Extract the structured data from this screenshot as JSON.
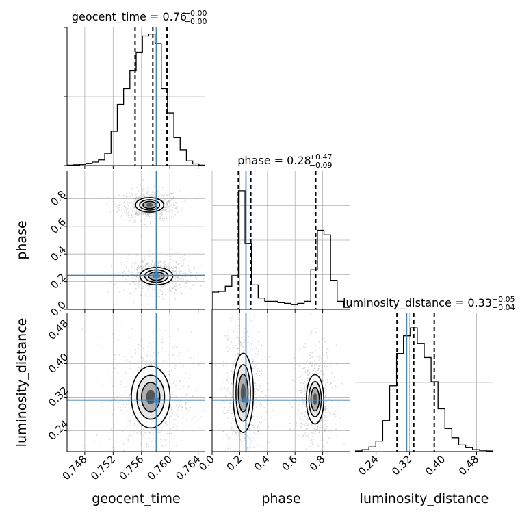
{
  "chart_data": {
    "type": "corner",
    "grid": true,
    "colors": {
      "truth": "#4682b4",
      "hist": "#000000",
      "quantile": "#000000",
      "grid": "#b0b0b0",
      "samples": "#9a9a9a"
    },
    "parameters": [
      {
        "name": "geocent_time",
        "axis_label": "geocent_time",
        "title_main": "geocent_time = 0.76",
        "title_sup": "+0.00",
        "title_sub": "−0.00",
        "range": [
          0.7455,
          0.765
        ],
        "ticks": [
          0.748,
          0.752,
          0.756,
          0.76,
          0.764
        ],
        "tick_labels": [
          "0.748",
          "0.752",
          "0.756",
          "0.760",
          "0.764"
        ],
        "truth": 0.7581,
        "quantiles": [
          0.7551,
          0.7576,
          0.7596
        ],
        "hist_counts": [
          0.3,
          0.6,
          0.9,
          1.7,
          2.6,
          4.3,
          9.3,
          26.0,
          46.5,
          58.5,
          72.0,
          86.0,
          98.5,
          100.0,
          92.5,
          58.5,
          40.0,
          21.5,
          12.0,
          3.5,
          1.3,
          0.3
        ],
        "hist_max": 100.0
      },
      {
        "name": "phase",
        "axis_label": "phase",
        "title_main": "phase = 0.28",
        "title_sup": "+0.47",
        "title_sub": "−0.09",
        "range": [
          0.0,
          1.0
        ],
        "ticks": [
          0.0,
          0.2,
          0.4,
          0.6,
          0.8
        ],
        "tick_labels": [
          "0.0",
          "0.2",
          "0.4",
          "0.6",
          "0.8"
        ],
        "truth": 0.245,
        "quantiles": [
          0.19,
          0.28,
          0.75
        ],
        "hist_counts": [
          13,
          13.5,
          17.5,
          25.5,
          90,
          50,
          18.5,
          8.5,
          6,
          6,
          5,
          4.5,
          3.5,
          4.5,
          6,
          30,
          60,
          56.5,
          22,
          6,
          1.5
        ],
        "hist_max": 100.0
      },
      {
        "name": "luminosity_distance",
        "axis_label": "luminosity_distance",
        "title_main": "luminosity_distance = 0.33",
        "title_sup": "+0.05",
        "title_sub": "−0.04",
        "range": [
          0.19,
          0.52
        ],
        "ticks": [
          0.24,
          0.32,
          0.4,
          0.48
        ],
        "tick_labels": [
          "0.24",
          "0.32",
          "0.40",
          "0.48"
        ],
        "truth": 0.313,
        "quantiles": [
          0.29,
          0.33,
          0.379
        ],
        "hist_counts": [
          0.5,
          1.5,
          3.5,
          8,
          23.5,
          50,
          74.5,
          88,
          94,
          82,
          71.5,
          53,
          32.5,
          17.5,
          10.5,
          5,
          3,
          1.5,
          1,
          0.5
        ],
        "hist_max": 100.0
      }
    ],
    "blobs_2d": {
      "0_1": [
        {
          "cx": 0.75715,
          "cy": 0.755,
          "sx": 0.00095,
          "sy": 0.025
        },
        {
          "cx": 0.7581,
          "cy": 0.24,
          "sx": 0.0011,
          "sy": 0.03
        }
      ],
      "0_2": [
        {
          "cx": 0.7573,
          "cy": 0.32,
          "sx": 0.0013,
          "sy": 0.035
        }
      ],
      "1_2": [
        {
          "cx": 0.225,
          "cy": 0.33,
          "sx": 0.035,
          "sy": 0.045
        },
        {
          "cx": 0.745,
          "cy": 0.315,
          "sx": 0.03,
          "sy": 0.028
        }
      ]
    }
  }
}
